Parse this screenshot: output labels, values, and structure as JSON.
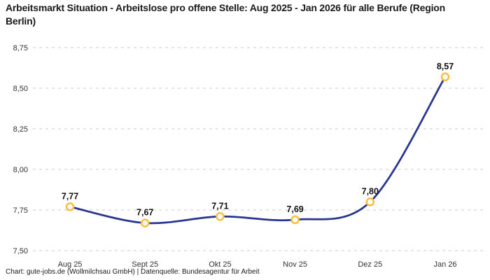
{
  "title": "Arbeitsmarkt Situation - Arbeitslose pro offene Stelle: Aug 2025 - Jan 2026 für alle Berufe (Region Berlin)",
  "footer": "Chart: gute-jobs.de (Wollmilchsau GmbH) | Datenquelle: Bundesagentur für Arbeit",
  "chart_data": {
    "type": "line",
    "categories": [
      "Aug 25",
      "Sept 25",
      "Okt 25",
      "Nov 25",
      "Dez 25",
      "Jan 26"
    ],
    "values": [
      7.77,
      7.67,
      7.71,
      7.69,
      7.8,
      8.57
    ],
    "value_labels": [
      "7,77",
      "7,67",
      "7,71",
      "7,69",
      "7,80",
      "8,57"
    ],
    "y_ticks": [
      7.5,
      7.75,
      8.0,
      8.25,
      8.5,
      8.75
    ],
    "y_tick_labels": [
      "7,50",
      "7,75",
      "8,00",
      "8,25",
      "8,50",
      "8,75"
    ],
    "ylim": [
      7.5,
      8.75
    ],
    "xlabel": "",
    "ylabel": "",
    "grid": "dashed-horizontal",
    "legend": "none",
    "line_style": "smooth",
    "colors": {
      "line": "#283593",
      "marker_stroke": "#FBBD3A",
      "marker_fill": "#FFFFFF",
      "grid": "#CBCBCB",
      "axis_text": "#333333",
      "label_text": "#111111"
    }
  }
}
